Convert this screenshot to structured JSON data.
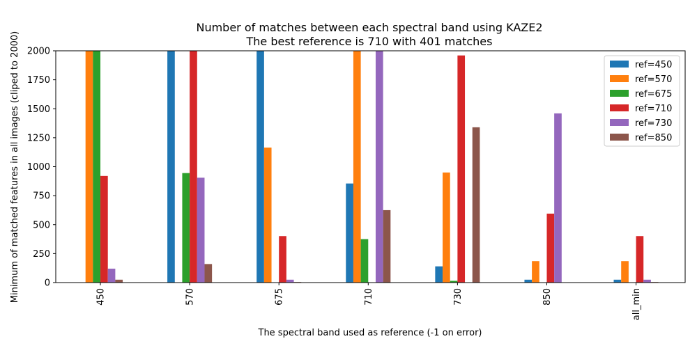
{
  "chart_data": {
    "type": "bar",
    "title": "Number of matches between each spectral band using KAZE2",
    "subtitle": "The best reference is 710 with 401 matches",
    "xlabel": "The spectral band used as reference (-1 on error)",
    "ylabel": "Minimum of matched features in all images (cliped to 2000)",
    "ylim": [
      0,
      2000
    ],
    "yticks": [
      0,
      250,
      500,
      750,
      1000,
      1250,
      1500,
      1750,
      2000
    ],
    "categories": [
      "450",
      "570",
      "675",
      "710",
      "730",
      "850",
      "all_min"
    ],
    "legend_position": "top-right",
    "grid": false,
    "series": [
      {
        "name": "ref=450",
        "color": "#1f77b4",
        "values": [
          0,
          2000,
          2000,
          855,
          140,
          25,
          25
        ]
      },
      {
        "name": "ref=570",
        "color": "#ff7f0e",
        "values": [
          2000,
          0,
          1165,
          2000,
          950,
          185,
          185
        ]
      },
      {
        "name": "ref=675",
        "color": "#2ca02c",
        "values": [
          2000,
          945,
          0,
          375,
          15,
          0,
          0
        ]
      },
      {
        "name": "ref=710",
        "color": "#d62728",
        "values": [
          920,
          2000,
          401,
          0,
          1960,
          595,
          401
        ]
      },
      {
        "name": "ref=730",
        "color": "#9467bd",
        "values": [
          120,
          905,
          25,
          2000,
          0,
          1460,
          25
        ]
      },
      {
        "name": "ref=850",
        "color": "#8c564b",
        "values": [
          25,
          160,
          5,
          625,
          1340,
          0,
          5
        ]
      }
    ]
  }
}
